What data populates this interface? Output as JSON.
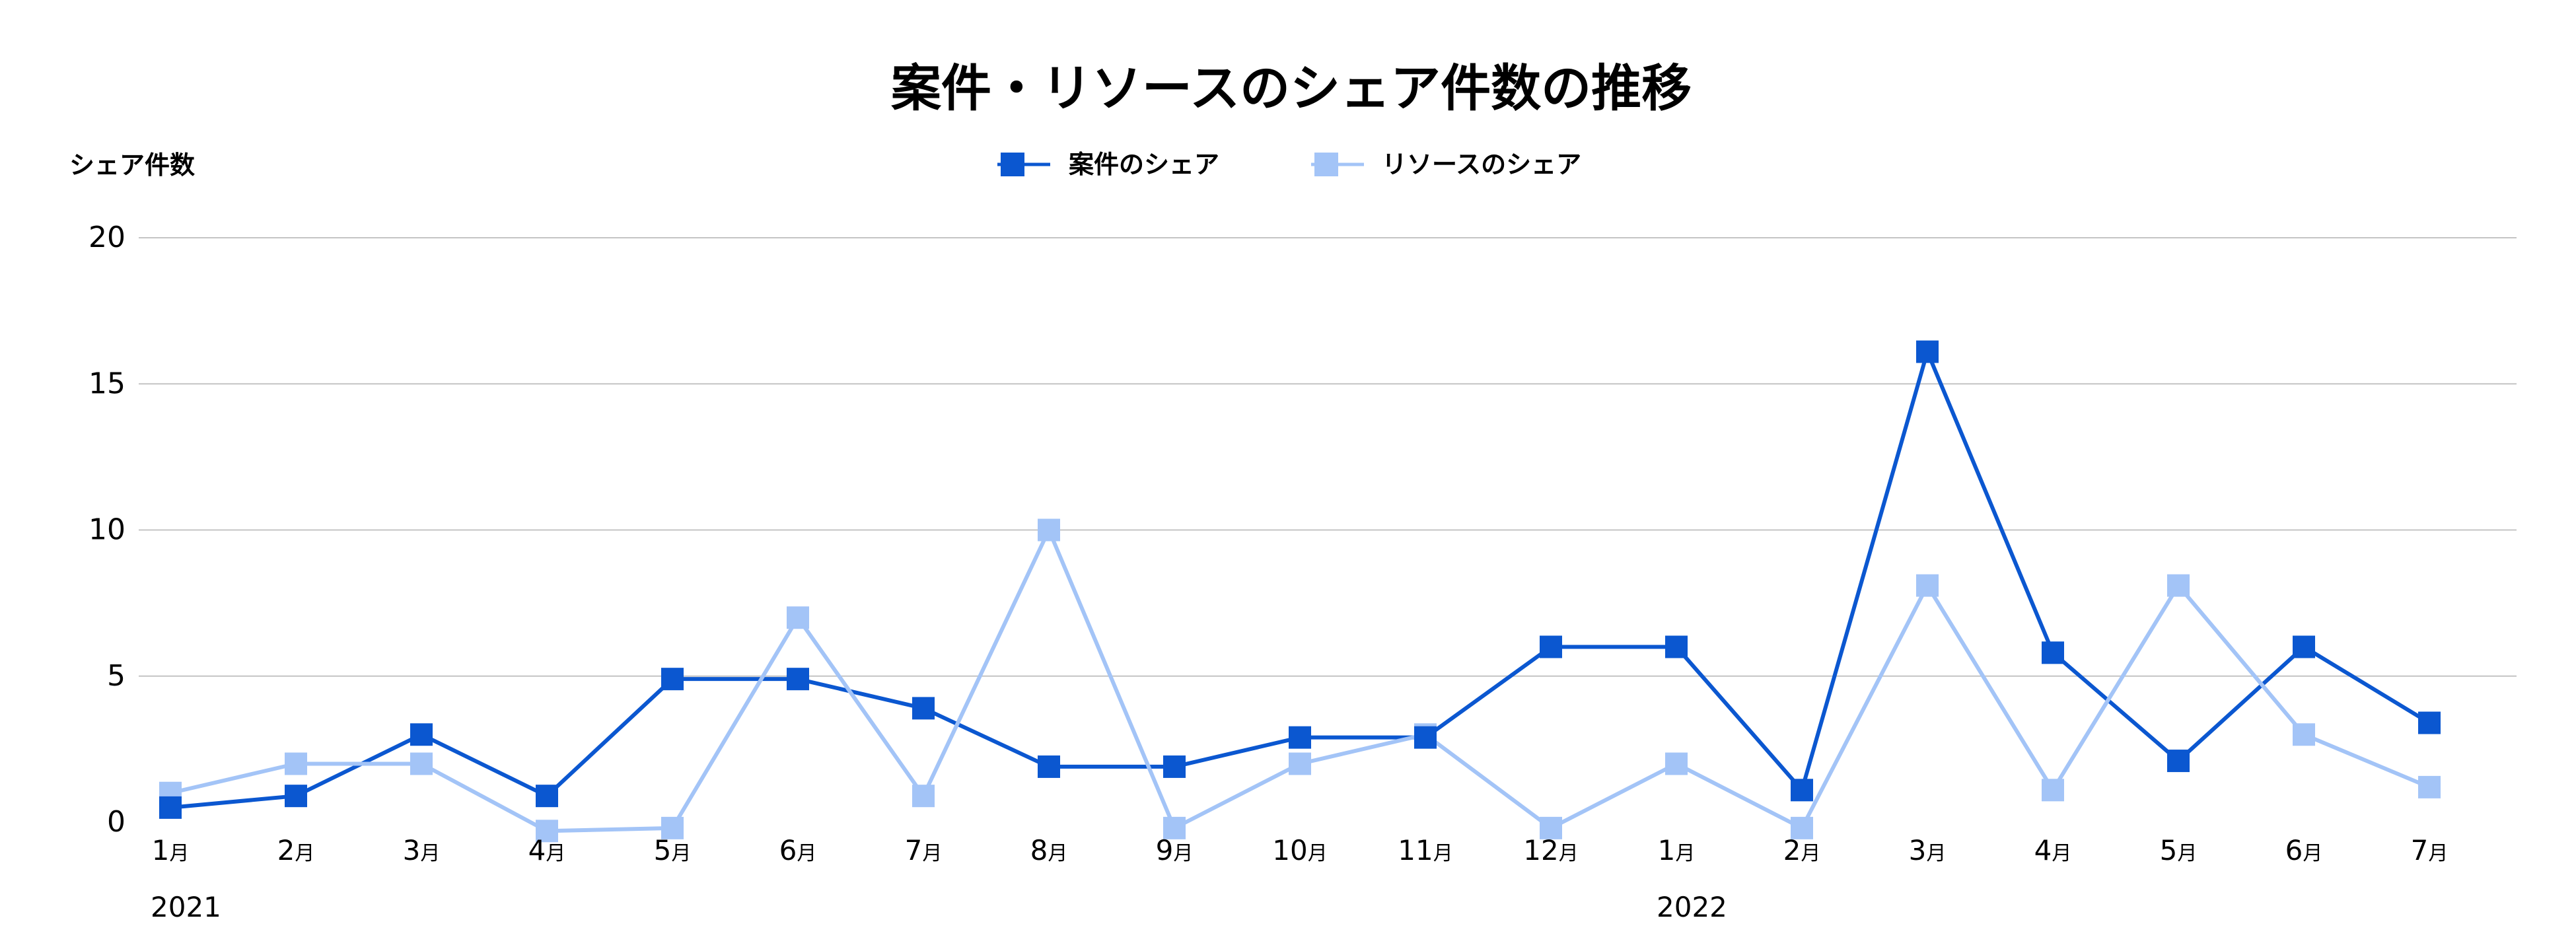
{
  "chart_data": {
    "type": "line",
    "title": "案件・リソースのシェア件数の推移",
    "ylabel": "シェア件数",
    "ylim": [
      0,
      20
    ],
    "yticks": [
      "0",
      "5",
      "10",
      "15",
      "20"
    ],
    "grid": true,
    "legend_position": "top-center",
    "month_unit": "月",
    "categories": [
      "1",
      "2",
      "3",
      "4",
      "5",
      "6",
      "7",
      "8",
      "9",
      "10",
      "11",
      "12",
      "1",
      "2",
      "3",
      "4",
      "5",
      "6",
      "7"
    ],
    "year_labels": [
      {
        "index": 0,
        "label": "2021"
      },
      {
        "index": 12,
        "label": "2022"
      }
    ],
    "series": [
      {
        "name": "案件のシェア",
        "color": "#0b57d0",
        "values": [
          0.5,
          0.9,
          3.0,
          0.9,
          4.9,
          4.9,
          3.9,
          1.9,
          1.9,
          2.9,
          2.9,
          6.0,
          6.0,
          1.1,
          16.1,
          5.8,
          2.1,
          6.0,
          3.4
        ]
      },
      {
        "name": "リソースのシェア",
        "color": "#a3c4f7",
        "values": [
          1.0,
          2.0,
          2.0,
          -0.3,
          -0.2,
          7.0,
          0.9,
          10.0,
          -0.2,
          2.0,
          3.0,
          -0.2,
          2.0,
          -0.2,
          8.1,
          1.1,
          8.1,
          3.0,
          1.2
        ]
      }
    ]
  }
}
